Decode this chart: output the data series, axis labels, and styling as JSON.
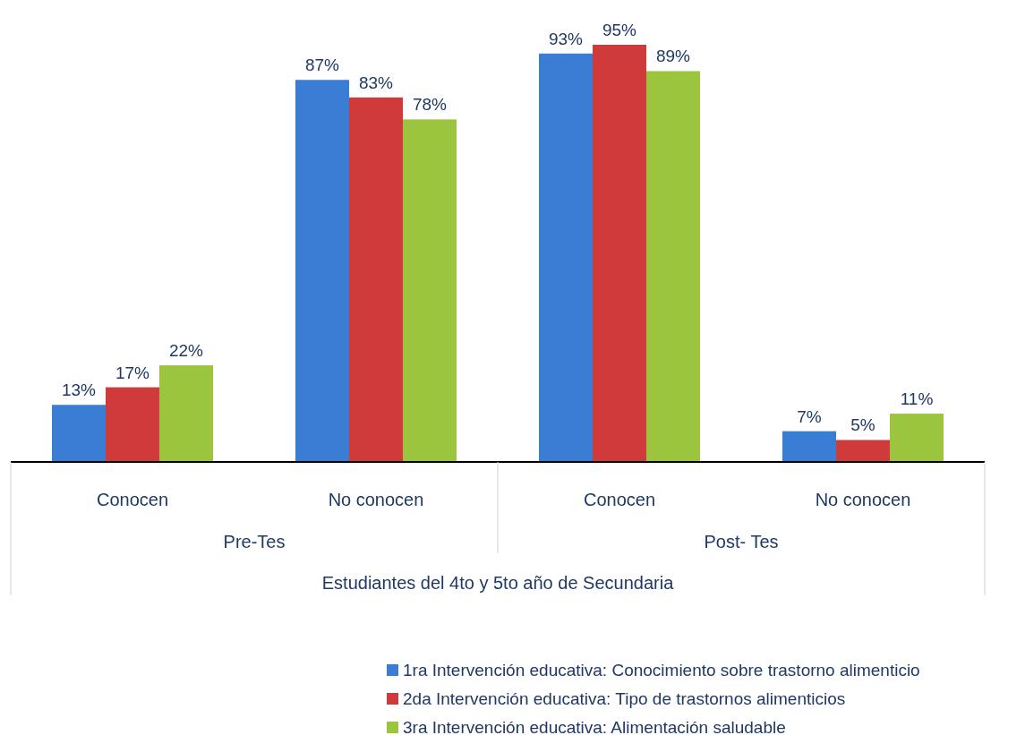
{
  "chart_data": {
    "type": "bar",
    "categories": [
      "Conocen",
      "No conocen",
      "Conocen",
      "No conocen"
    ],
    "series": [
      {
        "name": "1ra Intervención educativa: Conocimiento sobre trastorno alimenticio",
        "color": "#3a7dd4",
        "values": [
          13,
          87,
          93,
          7
        ],
        "value_labels": [
          "13%",
          "87%",
          "93%",
          "7%"
        ]
      },
      {
        "name": "2da Intervención educativa: Tipo de trastornos alimenticios",
        "color": "#d13a3a",
        "values": [
          17,
          83,
          95,
          5
        ],
        "value_labels": [
          "17%",
          "83%",
          "95%",
          "5%"
        ]
      },
      {
        "name": "3ra Intervención educativa: Alimentación saludable",
        "color": "#9bc53d",
        "values": [
          22,
          78,
          89,
          11
        ],
        "value_labels": [
          "22%",
          "78%",
          "89%",
          "11%"
        ]
      }
    ],
    "xlabel": "Estudiantes del 4to y 5to año de Secundaria",
    "annotations": [
      "Pre-Tes",
      "Post- Tes"
    ],
    "legend": "bottom"
  }
}
